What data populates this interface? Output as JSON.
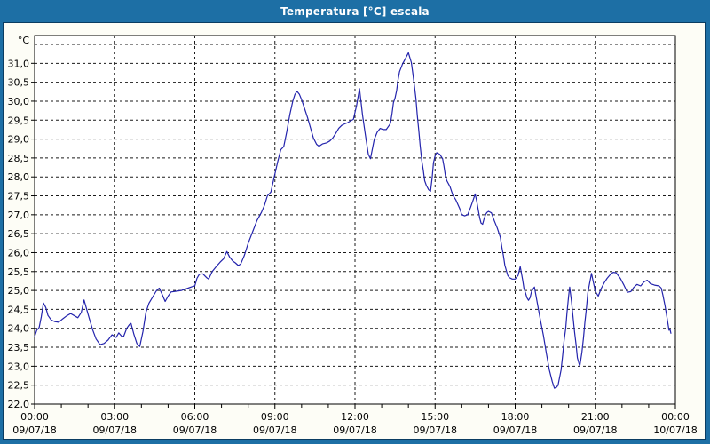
{
  "window": {
    "title": "Temperatura [°C] escala"
  },
  "colors": {
    "titlebar_bg": "#1D6FA5",
    "frame_line": "#0A3C61",
    "panel_bg": "#FDFDF6",
    "plot_bg": "#FFFFFF",
    "grid": "#1A1A1A",
    "axis": "#000000",
    "label_text": "#000000",
    "title_text": "#FFFFFF",
    "series_line": "#2323AC"
  },
  "chart_data": {
    "type": "line",
    "title": "Temperatura [°C] escala",
    "y_unit_label": "°C",
    "grid": "dashed",
    "legend": "none",
    "x_axis": {
      "min_hours": 0,
      "max_hours": 24,
      "major_tick_hours": 3,
      "minor_tick_hours": 1,
      "ticks": [
        {
          "hours": 0,
          "time": "00:00",
          "date": "09/07/18"
        },
        {
          "hours": 3,
          "time": "03:00",
          "date": "09/07/18"
        },
        {
          "hours": 6,
          "time": "06:00",
          "date": "09/07/18"
        },
        {
          "hours": 9,
          "time": "09:00",
          "date": "09/07/18"
        },
        {
          "hours": 12,
          "time": "12:00",
          "date": "09/07/18"
        },
        {
          "hours": 15,
          "time": "15:00",
          "date": "09/07/18"
        },
        {
          "hours": 18,
          "time": "18:00",
          "date": "09/07/18"
        },
        {
          "hours": 21,
          "time": "21:00",
          "date": "09/07/18"
        },
        {
          "hours": 24,
          "time": "00:00",
          "date": "10/07/18"
        }
      ]
    },
    "y_axis": {
      "min": 22.0,
      "max": 31.75,
      "grid_step": 0.5,
      "top_gridline": 31.5,
      "ticks": [
        {
          "value": 31.0,
          "label": "31,0"
        },
        {
          "value": 30.5,
          "label": "30,5"
        },
        {
          "value": 30.0,
          "label": "30,0"
        },
        {
          "value": 29.5,
          "label": "29,5"
        },
        {
          "value": 29.0,
          "label": "29,0"
        },
        {
          "value": 28.5,
          "label": "28,5"
        },
        {
          "value": 28.0,
          "label": "28,0"
        },
        {
          "value": 27.5,
          "label": "27,5"
        },
        {
          "value": 27.0,
          "label": "27,0"
        },
        {
          "value": 26.5,
          "label": "26,5"
        },
        {
          "value": 26.0,
          "label": "26,0"
        },
        {
          "value": 25.5,
          "label": "25,5"
        },
        {
          "value": 25.0,
          "label": "25,0"
        },
        {
          "value": 24.5,
          "label": "24,5"
        },
        {
          "value": 24.0,
          "label": "24,0"
        },
        {
          "value": 23.5,
          "label": "23,5"
        },
        {
          "value": 23.0,
          "label": "23,0"
        },
        {
          "value": 22.5,
          "label": "22,5"
        },
        {
          "value": 22.0,
          "label": "22,0"
        }
      ]
    },
    "series": [
      {
        "name": "Temperatura",
        "color": "#2323AC",
        "points": [
          [
            0,
            23.78
          ],
          [
            0.08,
            23.95
          ],
          [
            0.17,
            24.02
          ],
          [
            0.25,
            24.3
          ],
          [
            0.33,
            24.67
          ],
          [
            0.42,
            24.55
          ],
          [
            0.5,
            24.34
          ],
          [
            0.62,
            24.22
          ],
          [
            0.75,
            24.18
          ],
          [
            0.9,
            24.16
          ],
          [
            1.05,
            24.25
          ],
          [
            1.2,
            24.33
          ],
          [
            1.35,
            24.39
          ],
          [
            1.5,
            24.33
          ],
          [
            1.62,
            24.28
          ],
          [
            1.75,
            24.42
          ],
          [
            1.85,
            24.75
          ],
          [
            1.95,
            24.5
          ],
          [
            2.05,
            24.25
          ],
          [
            2.18,
            23.95
          ],
          [
            2.3,
            23.72
          ],
          [
            2.45,
            23.57
          ],
          [
            2.6,
            23.6
          ],
          [
            2.75,
            23.69
          ],
          [
            2.9,
            23.83
          ],
          [
            3.05,
            23.76
          ],
          [
            3.15,
            23.88
          ],
          [
            3.25,
            23.8
          ],
          [
            3.33,
            23.78
          ],
          [
            3.45,
            24
          ],
          [
            3.55,
            24.1
          ],
          [
            3.61,
            24.13
          ],
          [
            3.72,
            23.84
          ],
          [
            3.83,
            23.6
          ],
          [
            3.94,
            23.52
          ],
          [
            4.06,
            23.92
          ],
          [
            4.17,
            24.42
          ],
          [
            4.28,
            24.66
          ],
          [
            4.44,
            24.85
          ],
          [
            4.56,
            24.99
          ],
          [
            4.67,
            25.06
          ],
          [
            4.78,
            24.89
          ],
          [
            4.89,
            24.71
          ],
          [
            5,
            24.85
          ],
          [
            5.11,
            24.96
          ],
          [
            5.3,
            24.98
          ],
          [
            5.5,
            25
          ],
          [
            5.7,
            25.05
          ],
          [
            5.9,
            25.1
          ],
          [
            6,
            25.12
          ],
          [
            6.08,
            25.32
          ],
          [
            6.17,
            25.43
          ],
          [
            6.3,
            25.44
          ],
          [
            6.44,
            25.34
          ],
          [
            6.52,
            25.3
          ],
          [
            6.65,
            25.5
          ],
          [
            6.8,
            25.63
          ],
          [
            6.95,
            25.75
          ],
          [
            7.08,
            25.84
          ],
          [
            7.2,
            26.03
          ],
          [
            7.3,
            25.89
          ],
          [
            7.42,
            25.78
          ],
          [
            7.52,
            25.73
          ],
          [
            7.63,
            25.66
          ],
          [
            7.72,
            25.7
          ],
          [
            7.85,
            25.92
          ],
          [
            8,
            26.25
          ],
          [
            8.17,
            26.56
          ],
          [
            8.33,
            26.85
          ],
          [
            8.5,
            27.07
          ],
          [
            8.61,
            27.25
          ],
          [
            8.72,
            27.5
          ],
          [
            8.85,
            27.6
          ],
          [
            9,
            28.08
          ],
          [
            9.11,
            28.42
          ],
          [
            9.22,
            28.72
          ],
          [
            9.33,
            28.8
          ],
          [
            9.44,
            29.18
          ],
          [
            9.56,
            29.65
          ],
          [
            9.67,
            30
          ],
          [
            9.75,
            30.18
          ],
          [
            9.83,
            30.26
          ],
          [
            9.92,
            30.18
          ],
          [
            10,
            30.04
          ],
          [
            10.11,
            29.81
          ],
          [
            10.22,
            29.57
          ],
          [
            10.33,
            29.3
          ],
          [
            10.44,
            29.03
          ],
          [
            10.56,
            28.86
          ],
          [
            10.65,
            28.81
          ],
          [
            10.78,
            28.87
          ],
          [
            10.94,
            28.9
          ],
          [
            11.06,
            28.95
          ],
          [
            11.17,
            29.03
          ],
          [
            11.28,
            29.15
          ],
          [
            11.39,
            29.28
          ],
          [
            11.5,
            29.36
          ],
          [
            11.61,
            29.4
          ],
          [
            11.72,
            29.43
          ],
          [
            11.83,
            29.48
          ],
          [
            11.94,
            29.52
          ],
          [
            12.06,
            29.89
          ],
          [
            12.17,
            30.33
          ],
          [
            12.28,
            29.65
          ],
          [
            12.39,
            29.11
          ],
          [
            12.5,
            28.6
          ],
          [
            12.58,
            28.48
          ],
          [
            12.72,
            28.99
          ],
          [
            12.83,
            29.18
          ],
          [
            12.94,
            29.28
          ],
          [
            13.06,
            29.25
          ],
          [
            13.17,
            29.25
          ],
          [
            13.28,
            29.36
          ],
          [
            13.33,
            29.42
          ],
          [
            13.39,
            29.69
          ],
          [
            13.44,
            29.96
          ],
          [
            13.5,
            30.08
          ],
          [
            13.56,
            30.28
          ],
          [
            13.61,
            30.55
          ],
          [
            13.67,
            30.78
          ],
          [
            13.78,
            30.98
          ],
          [
            13.89,
            31.13
          ],
          [
            14,
            31.28
          ],
          [
            14.11,
            31.02
          ],
          [
            14.17,
            30.71
          ],
          [
            14.22,
            30.43
          ],
          [
            14.28,
            30.08
          ],
          [
            14.33,
            29.65
          ],
          [
            14.39,
            29.22
          ],
          [
            14.44,
            28.83
          ],
          [
            14.5,
            28.44
          ],
          [
            14.56,
            28.17
          ],
          [
            14.61,
            27.9
          ],
          [
            14.67,
            27.78
          ],
          [
            14.76,
            27.66
          ],
          [
            14.83,
            27.62
          ],
          [
            14.89,
            27.97
          ],
          [
            14.94,
            28.37
          ],
          [
            15,
            28.56
          ],
          [
            15.06,
            28.64
          ],
          [
            15.17,
            28.6
          ],
          [
            15.28,
            28.48
          ],
          [
            15.33,
            28.29
          ],
          [
            15.39,
            28.01
          ],
          [
            15.44,
            27.9
          ],
          [
            15.56,
            27.74
          ],
          [
            15.67,
            27.51
          ],
          [
            15.78,
            27.39
          ],
          [
            15.92,
            27.17
          ],
          [
            16,
            27
          ],
          [
            16.11,
            26.97
          ],
          [
            16.22,
            27
          ],
          [
            16.33,
            27.2
          ],
          [
            16.44,
            27.42
          ],
          [
            16.5,
            27.55
          ],
          [
            16.56,
            27.35
          ],
          [
            16.61,
            27.15
          ],
          [
            16.67,
            26.92
          ],
          [
            16.72,
            26.78
          ],
          [
            16.78,
            26.75
          ],
          [
            16.83,
            26.88
          ],
          [
            16.89,
            27
          ],
          [
            16.94,
            27.06
          ],
          [
            17,
            27.09
          ],
          [
            17.11,
            27.05
          ],
          [
            17.22,
            26.84
          ],
          [
            17.33,
            26.65
          ],
          [
            17.44,
            26.41
          ],
          [
            17.5,
            26.14
          ],
          [
            17.56,
            25.91
          ],
          [
            17.61,
            25.67
          ],
          [
            17.67,
            25.52
          ],
          [
            17.72,
            25.4
          ],
          [
            17.78,
            25.34
          ],
          [
            17.89,
            25.3
          ],
          [
            18,
            25.3
          ],
          [
            18.11,
            25.4
          ],
          [
            18.19,
            25.63
          ],
          [
            18.28,
            25.28
          ],
          [
            18.33,
            25.05
          ],
          [
            18.39,
            24.93
          ],
          [
            18.44,
            24.81
          ],
          [
            18.5,
            24.74
          ],
          [
            18.56,
            24.81
          ],
          [
            18.61,
            24.97
          ],
          [
            18.67,
            25.04
          ],
          [
            18.72,
            25.09
          ],
          [
            18.83,
            24.66
          ],
          [
            18.94,
            24.23
          ],
          [
            19.06,
            23.8
          ],
          [
            19.17,
            23.33
          ],
          [
            19.28,
            22.9
          ],
          [
            19.39,
            22.59
          ],
          [
            19.47,
            22.42
          ],
          [
            19.56,
            22.45
          ],
          [
            19.61,
            22.51
          ],
          [
            19.72,
            22.9
          ],
          [
            19.78,
            23.29
          ],
          [
            19.83,
            23.68
          ],
          [
            19.89,
            23.99
          ],
          [
            19.94,
            24.42
          ],
          [
            20,
            24.85
          ],
          [
            20.04,
            25.09
          ],
          [
            20.11,
            24.7
          ],
          [
            20.17,
            24.27
          ],
          [
            20.22,
            23.92
          ],
          [
            20.28,
            23.57
          ],
          [
            20.33,
            23.22
          ],
          [
            20.42,
            23
          ],
          [
            20.5,
            23.37
          ],
          [
            20.56,
            23.76
          ],
          [
            20.61,
            24.15
          ],
          [
            20.67,
            24.54
          ],
          [
            20.72,
            24.93
          ],
          [
            20.78,
            25.16
          ],
          [
            20.86,
            25.45
          ],
          [
            20.91,
            25.28
          ],
          [
            21,
            24.98
          ],
          [
            21.11,
            24.85
          ],
          [
            21.22,
            25.05
          ],
          [
            21.33,
            25.2
          ],
          [
            21.44,
            25.32
          ],
          [
            21.56,
            25.42
          ],
          [
            21.67,
            25.48
          ],
          [
            21.78,
            25.47
          ],
          [
            21.94,
            25.32
          ],
          [
            22.06,
            25.16
          ],
          [
            22.2,
            24.95
          ],
          [
            22.33,
            24.97
          ],
          [
            22.44,
            25.08
          ],
          [
            22.56,
            25.16
          ],
          [
            22.7,
            25.12
          ],
          [
            22.83,
            25.23
          ],
          [
            22.95,
            25.27
          ],
          [
            23.06,
            25.18
          ],
          [
            23.22,
            25.14
          ],
          [
            23.39,
            25.12
          ],
          [
            23.47,
            25.06
          ],
          [
            23.53,
            24.88
          ],
          [
            23.61,
            24.6
          ],
          [
            23.69,
            24.26
          ],
          [
            23.76,
            23.95
          ],
          [
            23.8,
            23.97
          ],
          [
            23.83,
            23.87
          ]
        ]
      }
    ]
  }
}
